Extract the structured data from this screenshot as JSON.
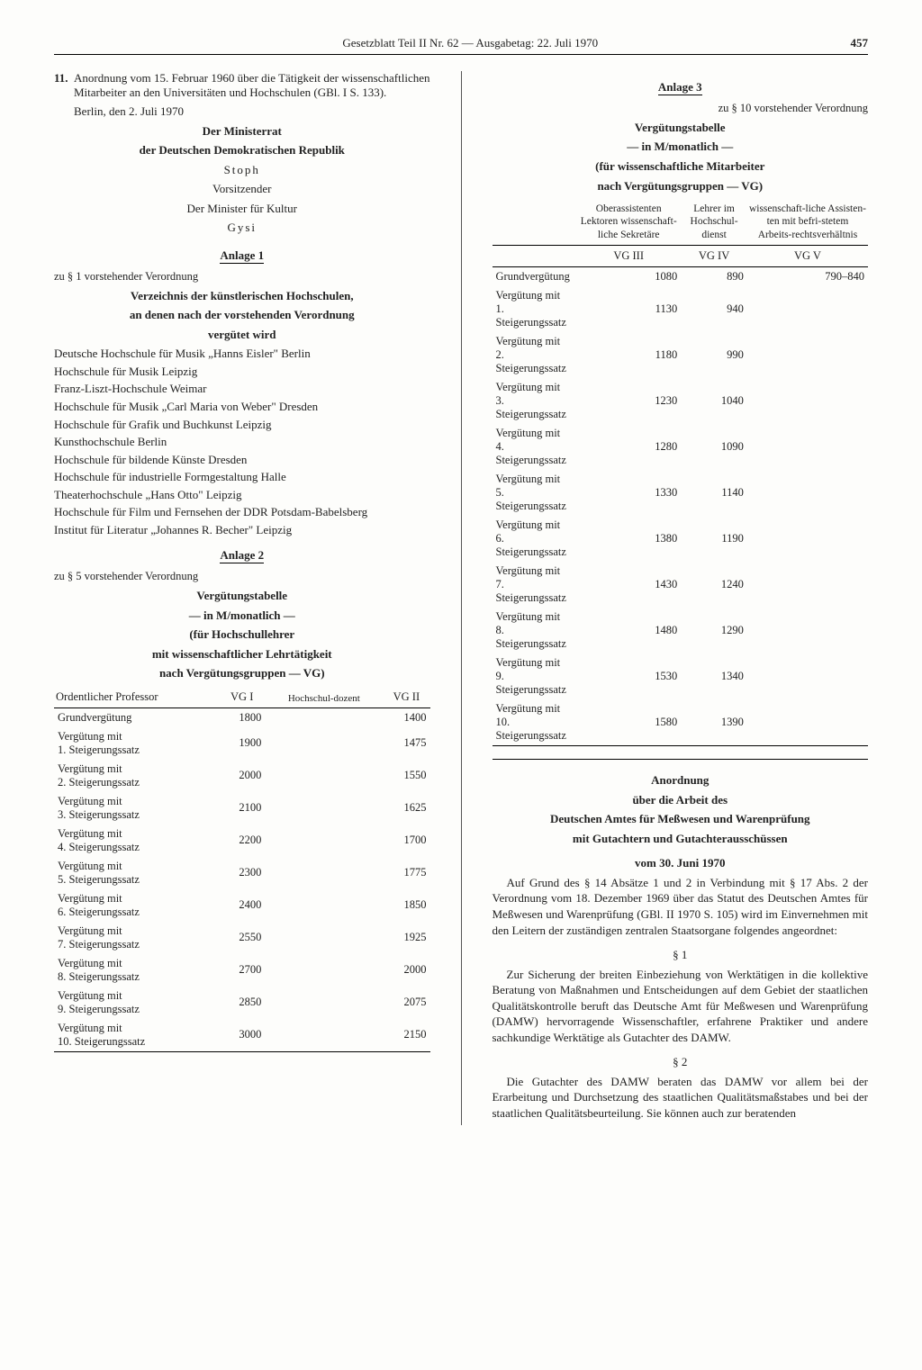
{
  "header": {
    "title": "Gesetzblatt Teil II Nr. 62 — Ausgabetag: 22. Juli 1970",
    "page": "457"
  },
  "left": {
    "item11": {
      "num": "11.",
      "text": "Anordnung vom 15. Februar 1960 über die Tätigkeit der wissenschaftlichen Mitarbeiter an den Universitäten und Hochschulen (GBl. I S. 133)."
    },
    "place_date": "Berlin, den 2. Juli 1970",
    "council1": "Der Ministerrat",
    "council2": "der Deutschen Demokratischen Republik",
    "stoph": "Stoph",
    "chair": "Vorsitzender",
    "minister": "Der Minister für Kultur",
    "gysi": "Gysi",
    "anlage1": {
      "title": "Anlage 1",
      "ref": "zu § 1 vorstehender Verordnung",
      "heading1": "Verzeichnis der künstlerischen Hochschulen,",
      "heading2": "an denen nach der vorstehenden Verordnung",
      "heading3": "vergütet wird",
      "items": [
        "Deutsche Hochschule für Musik „Hanns Eisler\" Berlin",
        "Hochschule für Musik Leipzig",
        "Franz-Liszt-Hochschule Weimar",
        "Hochschule für Musik „Carl Maria von Weber\" Dresden",
        "Hochschule für Grafik und Buchkunst Leipzig",
        "Kunsthochschule Berlin",
        "Hochschule für bildende Künste Dresden",
        "Hochschule für industrielle Formgestaltung Halle",
        "Theaterhochschule „Hans Otto\" Leipzig",
        "Hochschule für Film und Fernsehen der DDR Potsdam-Babelsberg",
        "Institut für Literatur „Johannes R. Becher\" Leipzig"
      ]
    },
    "anlage2": {
      "title": "Anlage 2",
      "ref": "zu § 5 vorstehender Verordnung",
      "heading1": "Vergütungstabelle",
      "heading2": "— in M/monatlich —",
      "heading3": "(für Hochschullehrer",
      "heading4": "mit wissenschaftlicher Lehrtätigkeit",
      "heading5": "nach Vergütungsgruppen — VG)",
      "columns": [
        "Ordentlicher Professor",
        "VG I",
        "Hochschul-dozent",
        "VG II"
      ],
      "rows": [
        [
          "Grundvergütung",
          "1800",
          "",
          "1400"
        ],
        [
          "Vergütung mit\n1. Steigerungssatz",
          "1900",
          "",
          "1475"
        ],
        [
          "Vergütung mit\n2. Steigerungssatz",
          "2000",
          "",
          "1550"
        ],
        [
          "Vergütung mit\n3. Steigerungssatz",
          "2100",
          "",
          "1625"
        ],
        [
          "Vergütung mit\n4. Steigerungssatz",
          "2200",
          "",
          "1700"
        ],
        [
          "Vergütung mit\n5. Steigerungssatz",
          "2300",
          "",
          "1775"
        ],
        [
          "Vergütung mit\n6. Steigerungssatz",
          "2400",
          "",
          "1850"
        ],
        [
          "Vergütung mit\n7. Steigerungssatz",
          "2550",
          "",
          "1925"
        ],
        [
          "Vergütung mit\n8. Steigerungssatz",
          "2700",
          "",
          "2000"
        ],
        [
          "Vergütung mit\n9. Steigerungssatz",
          "2850",
          "",
          "2075"
        ],
        [
          "Vergütung mit\n10. Steigerungssatz",
          "3000",
          "",
          "2150"
        ]
      ]
    }
  },
  "right": {
    "anlage3": {
      "title": "Anlage 3",
      "ref": "zu § 10 vorstehender Verordnung",
      "heading1": "Vergütungstabelle",
      "heading2": "— in M/monatlich —",
      "heading3": "(für wissenschaftliche Mitarbeiter",
      "heading4": "nach Vergütungsgruppen — VG)",
      "colhead1": "Oberassistenten Lektoren wissenschaft-liche Sekretäre",
      "colhead2": "Lehrer im Hochschul-dienst",
      "colhead3": "wissenschaft-liche Assisten-ten mit befri-stetem Arbeits-rechtsverhältnis",
      "vg_labels": [
        "VG III",
        "VG IV",
        "VG V"
      ],
      "rows": [
        [
          "Grundvergütung",
          "1080",
          "890",
          "790–840"
        ],
        [
          "Vergütung mit\n1. Steigerungssatz",
          "1130",
          "940",
          ""
        ],
        [
          "Vergütung mit\n2. Steigerungssatz",
          "1180",
          "990",
          ""
        ],
        [
          "Vergütung mit\n3. Steigerungssatz",
          "1230",
          "1040",
          ""
        ],
        [
          "Vergütung mit\n4. Steigerungssatz",
          "1280",
          "1090",
          ""
        ],
        [
          "Vergütung mit\n5. Steigerungssatz",
          "1330",
          "1140",
          ""
        ],
        [
          "Vergütung mit\n6. Steigerungssatz",
          "1380",
          "1190",
          ""
        ],
        [
          "Vergütung mit\n7. Steigerungssatz",
          "1430",
          "1240",
          ""
        ],
        [
          "Vergütung mit\n8. Steigerungssatz",
          "1480",
          "1290",
          ""
        ],
        [
          "Vergütung mit\n9. Steigerungssatz",
          "1530",
          "1340",
          ""
        ],
        [
          "Vergütung mit\n10. Steigerungssatz",
          "1580",
          "1390",
          ""
        ]
      ]
    },
    "anordnung": {
      "title1": "Anordnung",
      "title2": "über die Arbeit des",
      "title3": "Deutschen Amtes für Meßwesen und Warenprüfung",
      "title4": "mit Gutachtern und Gutachterausschüssen",
      "date": "vom 30. Juni 1970",
      "intro": "Auf Grund des § 14 Absätze 1 und 2 in Verbindung mit § 17 Abs. 2 der Verordnung vom 18. Dezember 1969 über das Statut des Deutschen Amtes für Meßwesen und Warenprüfung (GBl. II 1970 S. 105) wird im Einvernehmen mit den Leitern der zuständigen zentralen Staatsorgane folgendes angeordnet:",
      "s1_label": "§ 1",
      "s1_text": "Zur Sicherung der breiten Einbeziehung von Werktätigen in die kollektive Beratung von Maßnahmen und Entscheidungen auf dem Gebiet der staatlichen Qualitätskontrolle beruft das Deutsche Amt für Meßwesen und Warenprüfung (DAMW) hervorragende Wissenschaftler, erfahrene Praktiker und andere sachkundige Werktätige als Gutachter des DAMW.",
      "s2_label": "§ 2",
      "s2_text": "Die Gutachter des DAMW beraten das DAMW vor allem bei der Erarbeitung und Durchsetzung des staatlichen Qualitätsmaßstabes und bei der staatlichen Qualitätsbeurteilung. Sie können auch zur beratenden"
    }
  }
}
